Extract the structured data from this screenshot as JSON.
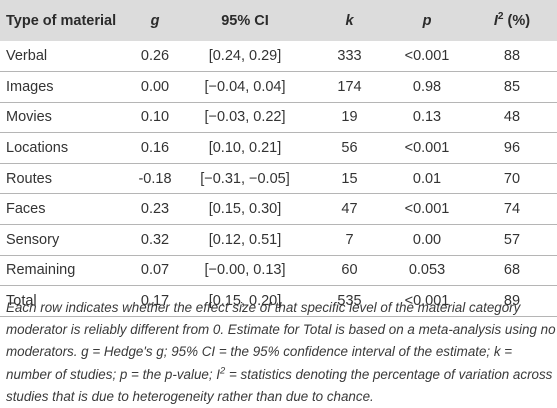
{
  "table": {
    "headers": {
      "material": "Type of material",
      "g": "g",
      "ci": "95% CI",
      "k": "k",
      "p": "p",
      "i2_base": "I",
      "i2_sup": "2",
      "i2_unit": " (%)"
    },
    "rows": [
      [
        "Verbal",
        "0.26",
        "[0.24, 0.29]",
        "333",
        "<0.001",
        "88"
      ],
      [
        "Images",
        "0.00",
        "[−0.04, 0.04]",
        "174",
        "0.98",
        "85"
      ],
      [
        "Movies",
        "0.10",
        "[−0.03, 0.22]",
        "19",
        "0.13",
        "48"
      ],
      [
        "Locations",
        "0.16",
        "[0.10, 0.21]",
        "56",
        "<0.001",
        "96"
      ],
      [
        "Routes",
        "-0.18",
        "[−0.31, −0.05]",
        "15",
        "0.01",
        "70"
      ],
      [
        "Faces",
        "0.23",
        "[0.15, 0.30]",
        "47",
        "<0.001",
        "74"
      ],
      [
        "Sensory",
        "0.32",
        "[0.12, 0.51]",
        "7",
        "0.00",
        "57"
      ],
      [
        "Remaining",
        "0.07",
        "[−0.00, 0.13]",
        "60",
        "0.053",
        "68"
      ],
      [
        "Total",
        "0.17",
        "[0.15, 0.20]",
        "535",
        "<0.001",
        "89"
      ]
    ]
  },
  "note": {
    "before_sup": "Each row indicates whether the effect size of that specific level of the material category moderator is reliably different from 0. Estimate for Total is based on a meta-analysis using no moderators. g = Hedge's g; 95% CI = the 95% confidence interval of the estimate; k = number of studies; p = the p-value; I",
    "sup": "2",
    "after_sup": " = statistics denoting the percentage of variation across studies that is due to heterogeneity rather than due to chance."
  },
  "colors": {
    "header_background": "#dcdcdc",
    "row_rule": "#b5b5b5",
    "text": "#333333"
  }
}
